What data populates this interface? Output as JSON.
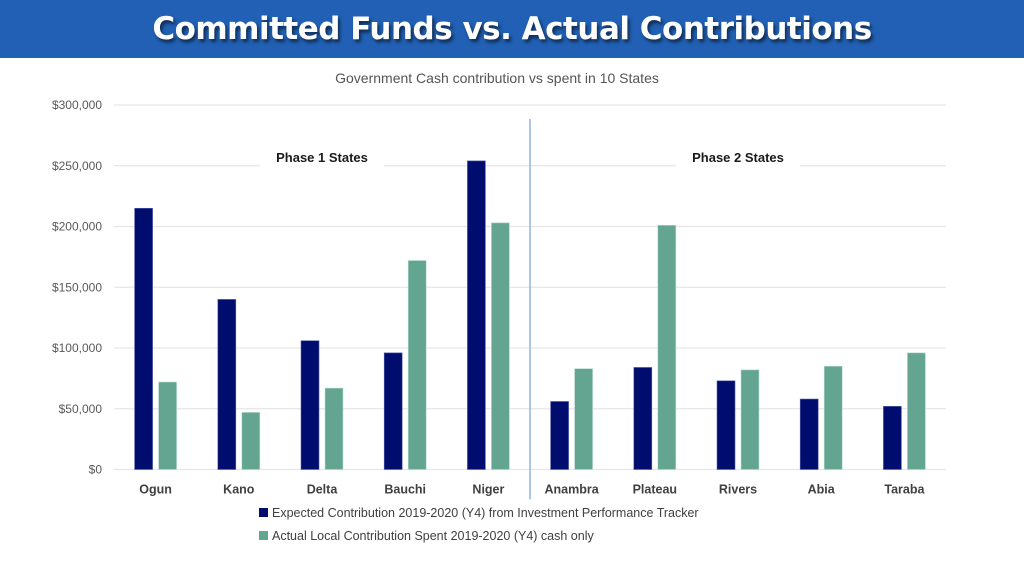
{
  "header": {
    "title": "Committed Funds vs. Actual Contributions"
  },
  "colors": {
    "banner": "#2160b4",
    "expected": "#000c6e",
    "actual": "#63a591",
    "divider": "#8fb4e3",
    "grid": "#e6e6e6"
  },
  "chart_data": {
    "type": "bar",
    "title": "Government Cash contribution vs spent in 10 States",
    "xlabel": "",
    "ylabel": "",
    "ylim": [
      0,
      300000
    ],
    "yticks": [
      0,
      50000,
      100000,
      150000,
      200000,
      250000,
      300000
    ],
    "ytick_labels": [
      "$0",
      "$50,000",
      "$100,000",
      "$150,000",
      "$200,000",
      "$250,000",
      "$300,000"
    ],
    "grid": true,
    "categories": [
      "Ogun",
      "Kano",
      "Delta",
      "Bauchi",
      "Niger",
      "Anambra",
      "Plateau",
      "Rivers",
      "Abia",
      "Taraba"
    ],
    "series": [
      {
        "name": "Expected Contribution 2019-2020 (Y4) from Investment Performance Tracker",
        "color": "#000c6e",
        "values": [
          215000,
          140000,
          106000,
          96000,
          254000,
          56000,
          84000,
          73000,
          58000,
          52000
        ]
      },
      {
        "name": "Actual Local Contribution Spent 2019-2020 (Y4) cash only",
        "color": "#63a591",
        "values": [
          72000,
          47000,
          67000,
          172000,
          203000,
          83000,
          201000,
          82000,
          85000,
          96000
        ]
      }
    ],
    "annotations": [
      {
        "text": "Phase 1 States",
        "group": [
          "Ogun",
          "Kano",
          "Delta",
          "Bauchi",
          "Niger"
        ]
      },
      {
        "text": "Phase 2 States",
        "group": [
          "Anambra",
          "Plateau",
          "Rivers",
          "Abia",
          "Taraba"
        ]
      }
    ],
    "divider_after_category": "Niger",
    "legend_position": "bottom"
  }
}
